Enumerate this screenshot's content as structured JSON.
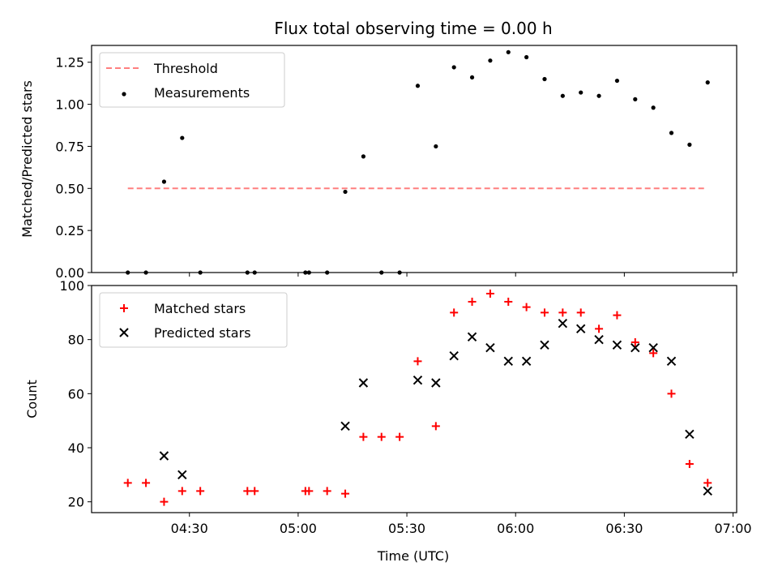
{
  "chart_data": [
    {
      "type": "scatter",
      "title": "Flux total observing time = 0.00 h",
      "xlabel": "",
      "ylabel": "Matched/Predicted stars",
      "ylim": [
        0,
        1.35
      ],
      "yticks": [
        "0.00",
        "0.25",
        "0.50",
        "0.75",
        "1.00",
        "1.25"
      ],
      "xlim": [
        "04:03",
        "07:01"
      ],
      "legend": {
        "placement": "top-left",
        "entries": [
          "Threshold",
          "Measurements"
        ]
      },
      "threshold": {
        "name": "Threshold",
        "value": 0.5,
        "x_start": "04:13",
        "x_end": "06:52",
        "color": "#ff7f7f"
      },
      "series": [
        {
          "name": "Measurements",
          "color": "#000000",
          "x": [
            "04:13",
            "04:18",
            "04:23",
            "04:28",
            "04:33",
            "04:46",
            "04:48",
            "05:02",
            "05:03",
            "05:08",
            "05:13",
            "05:18",
            "05:23",
            "05:28",
            "05:33",
            "05:38",
            "05:43",
            "05:48",
            "05:53",
            "05:58",
            "06:03",
            "06:08",
            "06:13",
            "06:18",
            "06:23",
            "06:28",
            "06:33",
            "06:38",
            "06:43",
            "06:48",
            "06:53"
          ],
          "values": [
            0.0,
            0.0,
            0.54,
            0.8,
            0.0,
            0.0,
            0.0,
            0.0,
            0.0,
            0.0,
            0.48,
            0.69,
            0.0,
            0.0,
            1.11,
            0.75,
            1.22,
            1.16,
            1.26,
            1.31,
            1.28,
            1.15,
            1.05,
            1.07,
            1.05,
            1.14,
            1.03,
            0.98,
            0.83,
            0.76,
            1.13
          ]
        }
      ]
    },
    {
      "type": "scatter",
      "title": "",
      "xlabel": "Time (UTC)",
      "ylabel": "Count",
      "ylim": [
        16,
        100
      ],
      "yticks": [
        "20",
        "40",
        "60",
        "80",
        "100"
      ],
      "xticks": [
        "04:30",
        "05:00",
        "05:30",
        "06:00",
        "06:30",
        "07:00"
      ],
      "xlim": [
        "04:03",
        "07:01"
      ],
      "legend": {
        "placement": "top-left",
        "entries": [
          "Matched stars",
          "Predicted stars"
        ]
      },
      "series": [
        {
          "name": "Matched stars",
          "marker": "plus",
          "color": "#ff0000",
          "x": [
            "04:13",
            "04:18",
            "04:23",
            "04:28",
            "04:33",
            "04:46",
            "04:48",
            "05:02",
            "05:03",
            "05:08",
            "05:13",
            "05:18",
            "05:23",
            "05:28",
            "05:33",
            "05:38",
            "05:43",
            "05:48",
            "05:53",
            "05:58",
            "06:03",
            "06:08",
            "06:13",
            "06:18",
            "06:23",
            "06:28",
            "06:33",
            "06:38",
            "06:43",
            "06:48",
            "06:53"
          ],
          "values": [
            27,
            27,
            20,
            24,
            24,
            24,
            24,
            24,
            24,
            24,
            23,
            44,
            44,
            44,
            72,
            48,
            90,
            94,
            97,
            94,
            92,
            90,
            90,
            90,
            84,
            89,
            79,
            75,
            60,
            34,
            27
          ]
        },
        {
          "name": "Predicted stars",
          "marker": "x",
          "color": "#000000",
          "x": [
            "04:23",
            "04:28",
            "05:13",
            "05:18",
            "05:33",
            "05:38",
            "05:43",
            "05:48",
            "05:53",
            "05:58",
            "06:03",
            "06:08",
            "06:13",
            "06:18",
            "06:23",
            "06:28",
            "06:33",
            "06:38",
            "06:43",
            "06:48",
            "06:53"
          ],
          "values": [
            37,
            30,
            48,
            64,
            65,
            64,
            74,
            81,
            77,
            72,
            72,
            78,
            86,
            84,
            80,
            78,
            77,
            77,
            72,
            45,
            24
          ]
        }
      ]
    }
  ]
}
